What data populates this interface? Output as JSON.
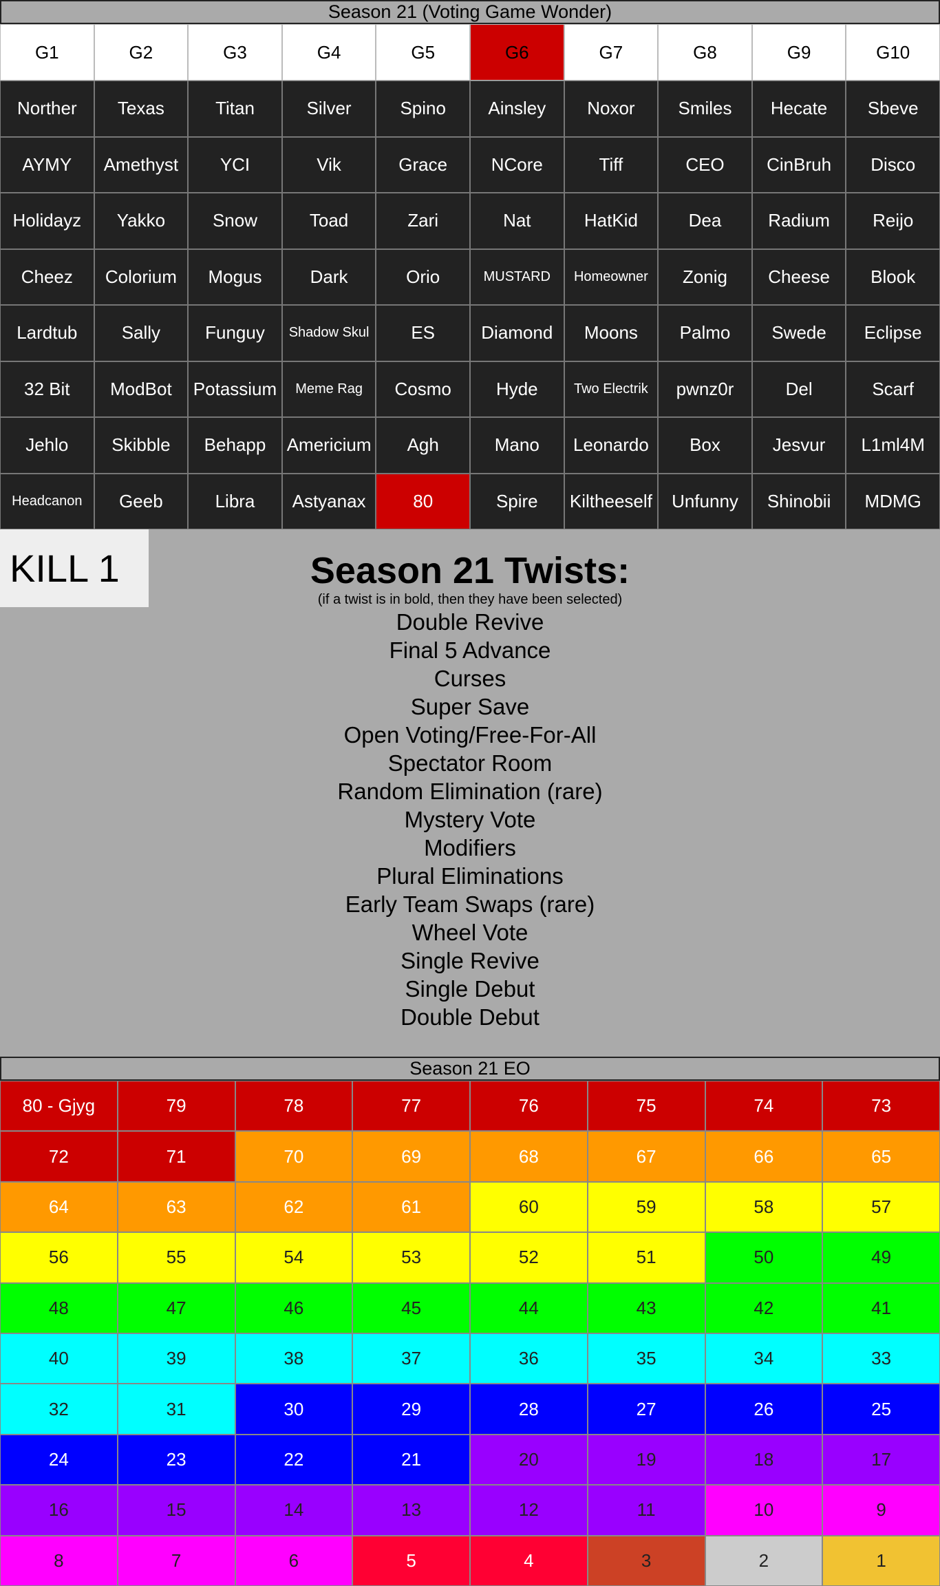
{
  "header": {
    "title": "Season 21 (Voting Game Wonder)"
  },
  "grid": {
    "columns": [
      "G1",
      "G2",
      "G3",
      "G4",
      "G5",
      {
        "text": "G6",
        "color": "#cc0000"
      },
      "G7",
      "G8",
      "G9",
      "G10"
    ],
    "rows": [
      [
        "Norther",
        "Texas",
        "Titan",
        "Silver",
        "Spino",
        "Ainsley",
        "Noxor",
        "Smiles",
        "Hecate",
        "Sbeve"
      ],
      [
        "AYMY",
        "Amethyst",
        "YCI",
        "Vik",
        "Grace",
        "NCore",
        "Tiff",
        "CEO",
        "CinBruh",
        "Disco"
      ],
      [
        "Holidayz",
        "Yakko",
        "Snow",
        "Toad",
        "Zari",
        "Nat",
        "HatKid",
        "Dea",
        "Radium",
        "Reijo"
      ],
      [
        "Cheez",
        "Colorium",
        "Mogus",
        "Dark",
        "Orio",
        "MUSTARD",
        "Homeowner",
        "Zonig",
        "Cheese",
        "Blook"
      ],
      [
        "Lardtub",
        "Sally",
        "Funguy",
        "Shadow Skul",
        "ES",
        "Diamond",
        "Moons",
        "Palmo",
        "Swede",
        "Eclipse"
      ],
      [
        "32 Bit",
        "ModBot",
        "Potassium",
        "Meme Rag",
        "Cosmo",
        "Hyde",
        "Two Electrik",
        "pwnz0r",
        "Del",
        "Scarf"
      ],
      [
        "Jehlo",
        "Skibble",
        "Behapp",
        "Americium",
        "Agh",
        "Mano",
        "Leonardo",
        "Box",
        "Jesvur",
        "L1ml4M"
      ],
      [
        "Headcanon",
        "Geeb",
        "Libra",
        "Astyanax",
        {
          "text": "80",
          "color": "#cc0000"
        },
        "Spire",
        "Kiltheeself",
        "Unfunny",
        "Shinobii",
        "MDMG"
      ]
    ]
  },
  "kill": "KILL 1",
  "twists": {
    "title": "Season 21 Twists:",
    "note": "(if a twist is in bold, then they have been selected)",
    "items": [
      "Double Revive",
      "Final 5 Advance",
      "Curses",
      "Super Save",
      "Open Voting/Free-For-All",
      "Spectator Room",
      "Random Elimination (rare)",
      "Mystery Vote",
      "Modifiers",
      "Plural Eliminations",
      "Early Team Swaps (rare)",
      "Wheel Vote",
      "Single Revive",
      "Single Debut",
      "Double Debut"
    ]
  },
  "eo": {
    "title": "Season 21 EO",
    "rows": [
      [
        "80 - Gjyg",
        "79",
        "78",
        "77",
        "76",
        "75",
        "74",
        "73"
      ],
      [
        "72",
        "71",
        "70",
        "69",
        "68",
        "67",
        "66",
        "65"
      ],
      [
        "64",
        "63",
        "62",
        "61",
        "60",
        "59",
        "58",
        "57"
      ],
      [
        "56",
        "55",
        "54",
        "53",
        "52",
        "51",
        "50",
        "49"
      ],
      [
        "48",
        "47",
        "46",
        "45",
        "44",
        "43",
        "42",
        "41"
      ],
      [
        "40",
        "39",
        "38",
        "37",
        "36",
        "35",
        "34",
        "33"
      ],
      [
        "32",
        "31",
        "30",
        "29",
        "28",
        "27",
        "26",
        "25"
      ],
      [
        "24",
        "23",
        "22",
        "21",
        "20",
        "19",
        "18",
        "17"
      ],
      [
        "16",
        "15",
        "14",
        "13",
        "12",
        "11",
        "10",
        "9"
      ],
      [
        "8",
        "7",
        "6",
        "5",
        "4",
        "3",
        "2",
        "1"
      ]
    ],
    "colors": [
      [
        "#cc0000",
        "#cc0000",
        "#cc0000",
        "#cc0000",
        "#cc0000",
        "#cc0000",
        "#cc0000",
        "#cc0000"
      ],
      [
        "#cc0000",
        "#cc0000",
        "#ff9900",
        "#ff9900",
        "#ff9900",
        "#ff9900",
        "#ff9900",
        "#ff9900"
      ],
      [
        "#ff9900",
        "#ff9900",
        "#ff9900",
        "#ff9900",
        "#ffff00",
        "#ffff00",
        "#ffff00",
        "#ffff00"
      ],
      [
        "#ffff00",
        "#ffff00",
        "#ffff00",
        "#ffff00",
        "#ffff00",
        "#ffff00",
        "#00ff00",
        "#00ff00"
      ],
      [
        "#00ff00",
        "#00ff00",
        "#00ff00",
        "#00ff00",
        "#00ff00",
        "#00ff00",
        "#00ff00",
        "#00ff00"
      ],
      [
        "#00ffff",
        "#00ffff",
        "#00ffff",
        "#00ffff",
        "#00ffff",
        "#00ffff",
        "#00ffff",
        "#00ffff"
      ],
      [
        "#00ffff",
        "#00ffff",
        "#0000ff",
        "#0000ff",
        "#0000ff",
        "#0000ff",
        "#0000ff",
        "#0000ff"
      ],
      [
        "#0000ff",
        "#0000ff",
        "#0000ff",
        "#0000ff",
        "#9900ff",
        "#9900ff",
        "#9900ff",
        "#9900ff"
      ],
      [
        "#9900ff",
        "#9900ff",
        "#9900ff",
        "#9900ff",
        "#9900ff",
        "#9900ff",
        "#ff00ff",
        "#ff00ff"
      ],
      [
        "#ff00ff",
        "#ff00ff",
        "#ff00ff",
        "#ff0033",
        "#ff0033",
        "#cc4125",
        "#cccccc",
        "#f1c232"
      ]
    ]
  }
}
